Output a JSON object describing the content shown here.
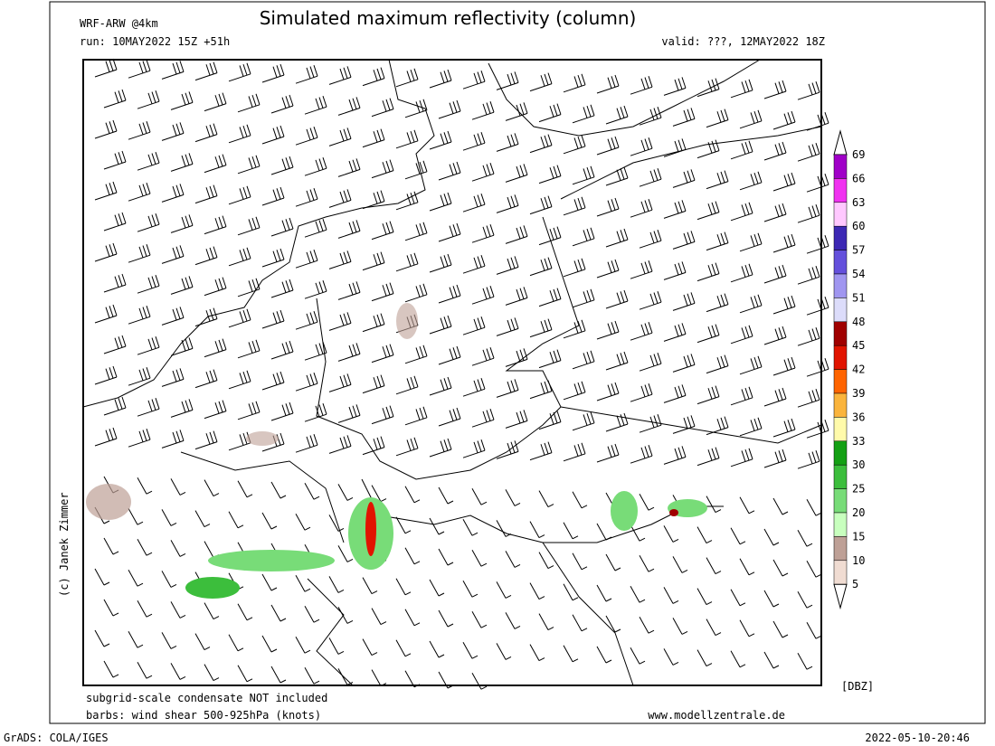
{
  "header": {
    "model": "WRF-ARW @4km",
    "title": "Simulated maximum reflectivity (column)",
    "run": "run: 10MAY2022 15Z +51h",
    "valid": "valid: ???, 12MAY2022 18Z"
  },
  "credit": "(c) Janek Zimmer",
  "notes": [
    "subgrid-scale condensate NOT included",
    "barbs: wind shear 500-925hPa (knots)"
  ],
  "website": "www.modellzentrale.de",
  "colorbar": {
    "unit": "[DBZ]",
    "levels": [
      69,
      66,
      63,
      60,
      57,
      54,
      51,
      48,
      45,
      42,
      39,
      36,
      33,
      30,
      25,
      20,
      15,
      10,
      5
    ],
    "colors": [
      "#a000c8",
      "#f032f0",
      "#ffc8ff",
      "#3c28b4",
      "#6450dc",
      "#a096f0",
      "#dcdcfa",
      "#a00000",
      "#e11400",
      "#ff6400",
      "#fab43c",
      "#fffaaa",
      "#14a014",
      "#3cbe3c",
      "#78dc78",
      "#c8ffbe",
      "#bea096",
      "#f0dcd2"
    ]
  },
  "footer": {
    "software": "GrADS: COLA/IGES",
    "timestamp": "2022-05-10-20:46"
  }
}
